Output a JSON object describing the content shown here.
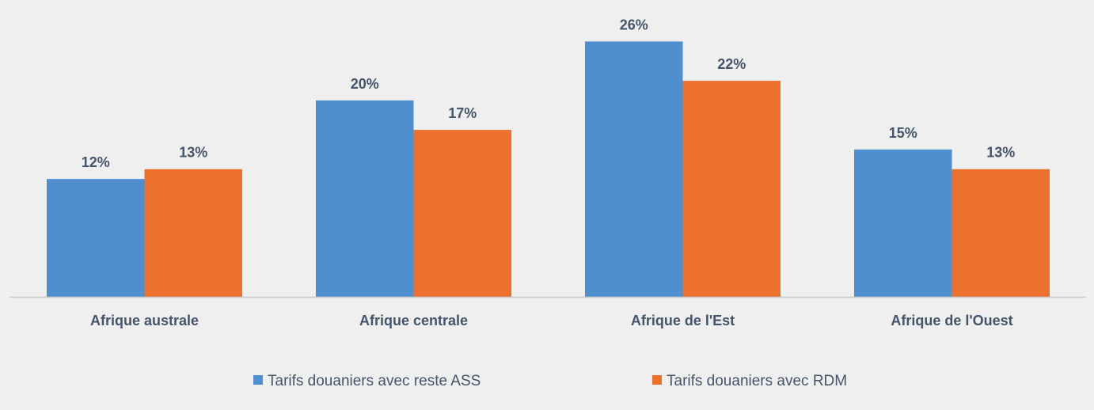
{
  "chart_data": {
    "type": "bar",
    "categories": [
      "Afrique australe",
      "Afrique centrale",
      "Afrique de l'Est",
      "Afrique de l'Ouest"
    ],
    "series": [
      {
        "name": "Tarifs douaniers avec reste ASS",
        "values": [
          12,
          20,
          26,
          15
        ],
        "labels": [
          "12%",
          "20%",
          "26%",
          "15%"
        ],
        "color": "#4f8fd0"
      },
      {
        "name": "Tarifs douaniers avec RDM",
        "values": [
          13,
          17,
          22,
          13
        ],
        "labels": [
          "13%",
          "17%",
          "22%",
          "13%"
        ],
        "color": "#ec712e"
      }
    ],
    "ylim": [
      0,
      27
    ],
    "grid": false,
    "legend": "bottom",
    "colors": {
      "background": "#efefef",
      "text": "#44546a",
      "axis": "#c8c8c8"
    }
  }
}
